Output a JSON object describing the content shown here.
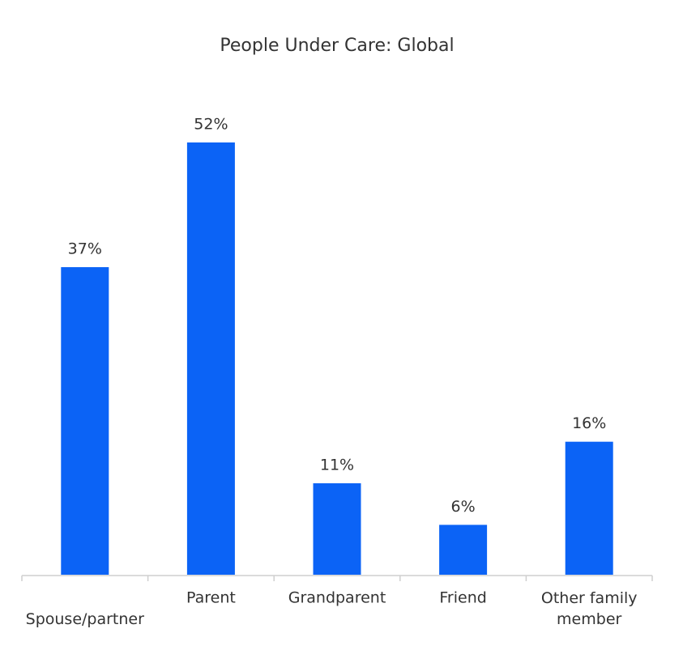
{
  "chart_data": {
    "type": "bar",
    "title": "People Under Care: Global",
    "categories": [
      "Spouse/partner",
      "Parent",
      "Grandparent",
      "Friend",
      "Other family member"
    ],
    "values": [
      37,
      52,
      11,
      6,
      16
    ],
    "value_labels": [
      "37%",
      "52%",
      "11%",
      "6%",
      "16%"
    ],
    "color": "#0b63f6"
  }
}
